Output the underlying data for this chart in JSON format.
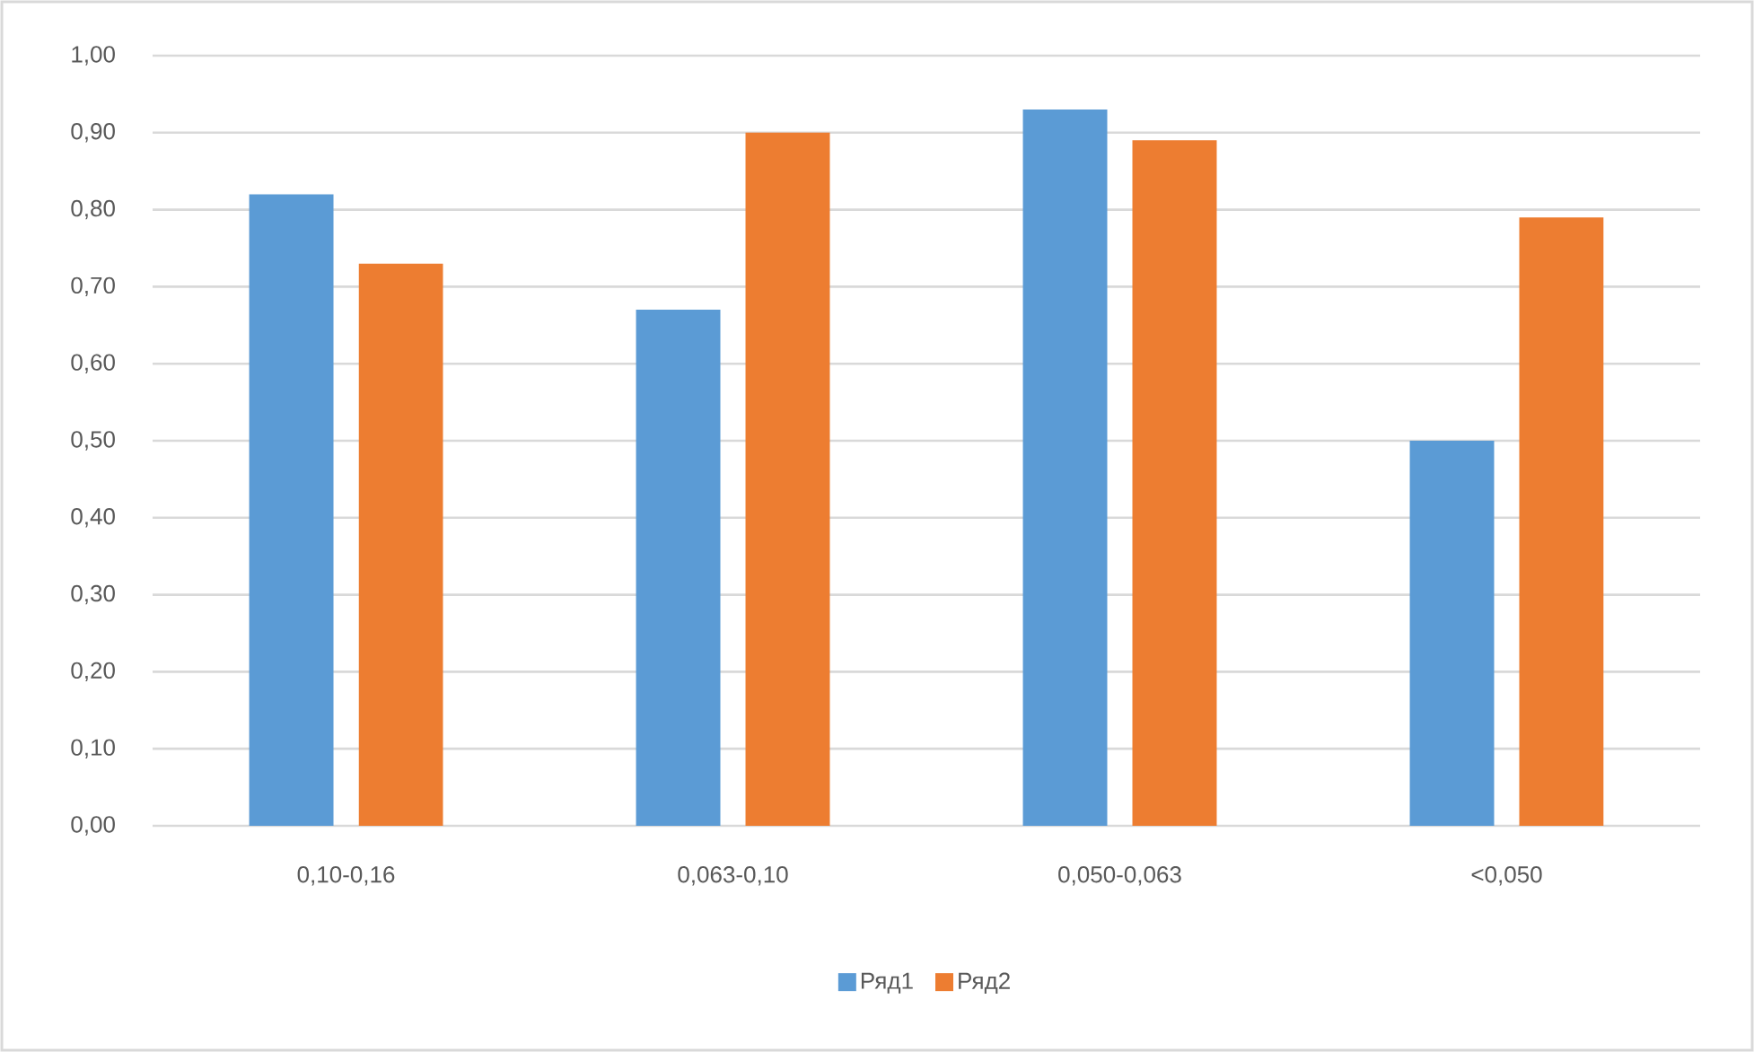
{
  "chart_data": {
    "type": "bar",
    "categories": [
      "0,10-0,16",
      "0,063-0,10",
      "0,050-0,063",
      "<0,050"
    ],
    "series": [
      {
        "name": "Ряд1",
        "color": "#5b9bd5",
        "values": [
          0.82,
          0.67,
          0.93,
          0.5
        ]
      },
      {
        "name": "Ряд2",
        "color": "#ed7d31",
        "values": [
          0.73,
          0.9,
          0.89,
          0.79
        ]
      }
    ],
    "ylim": [
      0,
      1
    ],
    "yticks": [
      {
        "value": 0,
        "label": "0,00"
      },
      {
        "value": 0.1,
        "label": "0,10"
      },
      {
        "value": 0.2,
        "label": "0,20"
      },
      {
        "value": 0.3,
        "label": "0,30"
      },
      {
        "value": 0.4,
        "label": "0,40"
      },
      {
        "value": 0.5,
        "label": "0,50"
      },
      {
        "value": 0.6,
        "label": "0,60"
      },
      {
        "value": 0.7,
        "label": "0,70"
      },
      {
        "value": 0.8,
        "label": "0,80"
      },
      {
        "value": 0.9,
        "label": "0,90"
      },
      {
        "value": 1,
        "label": "1,00"
      }
    ],
    "grid": "y",
    "legend": "bottom"
  }
}
